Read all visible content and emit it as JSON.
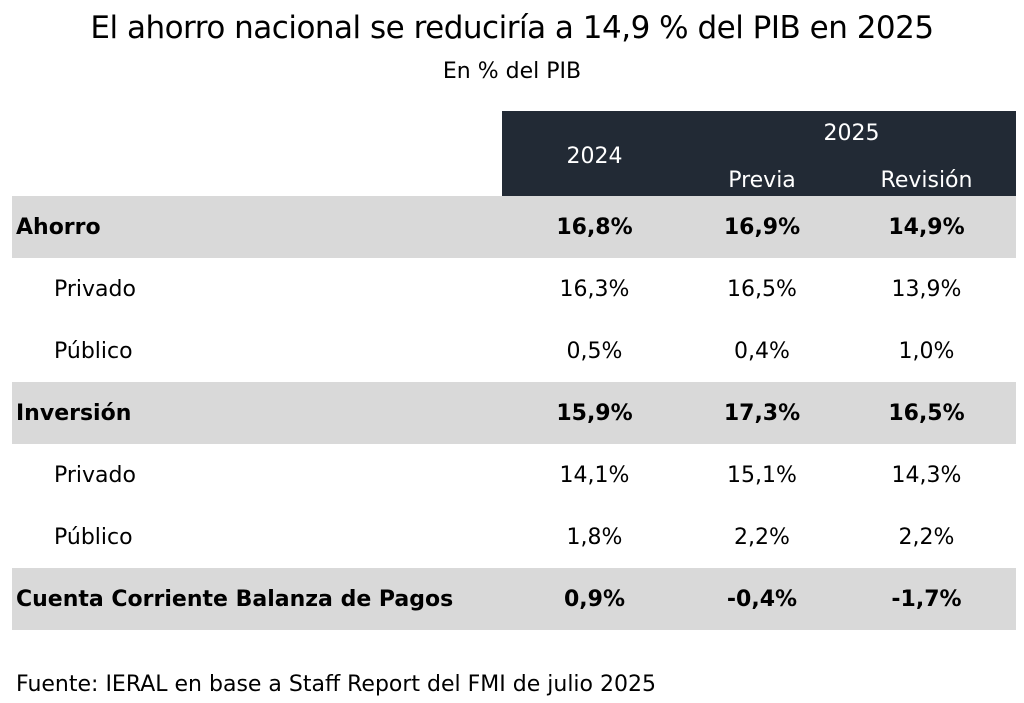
{
  "title": "El ahorro nacional se reduciría a 14,9 % del PIB en 2025",
  "subtitle": "En % del PIB",
  "header": {
    "year1": "2024",
    "year2": "2025",
    "sub_previa": "Previa",
    "sub_revision": "Revisión"
  },
  "source": "Fuente: IERAL en base a Staff Report del FMI de julio 2025",
  "colors": {
    "header_bg": "#222a35",
    "header_text": "#ffffff",
    "main_row_bg": "#d9d9d9"
  },
  "chart_data": {
    "type": "table",
    "title": "El ahorro nacional se reduciría a 14,9 % del PIB en 2025",
    "subtitle": "En % del PIB",
    "columns": [
      "2024",
      "2025 Previa",
      "2025 Revisión"
    ],
    "rows": [
      {
        "label": "Ahorro",
        "level": "main",
        "values": [
          "16,8%",
          "16,9%",
          "14,9%"
        ]
      },
      {
        "label": "Privado",
        "level": "sub",
        "values": [
          "16,3%",
          "16,5%",
          "13,9%"
        ]
      },
      {
        "label": "Público",
        "level": "sub",
        "values": [
          "0,5%",
          "0,4%",
          "1,0%"
        ]
      },
      {
        "label": "Inversión",
        "level": "main",
        "values": [
          "15,9%",
          "17,3%",
          "16,5%"
        ]
      },
      {
        "label": "Privado",
        "level": "sub",
        "values": [
          "14,1%",
          "15,1%",
          "14,3%"
        ]
      },
      {
        "label": "Público",
        "level": "sub",
        "values": [
          "1,8%",
          "2,2%",
          "2,2%"
        ]
      },
      {
        "label": "Cuenta Corriente Balanza de Pagos",
        "level": "main",
        "values": [
          "0,9%",
          "-0,4%",
          "-1,7%"
        ]
      }
    ]
  }
}
